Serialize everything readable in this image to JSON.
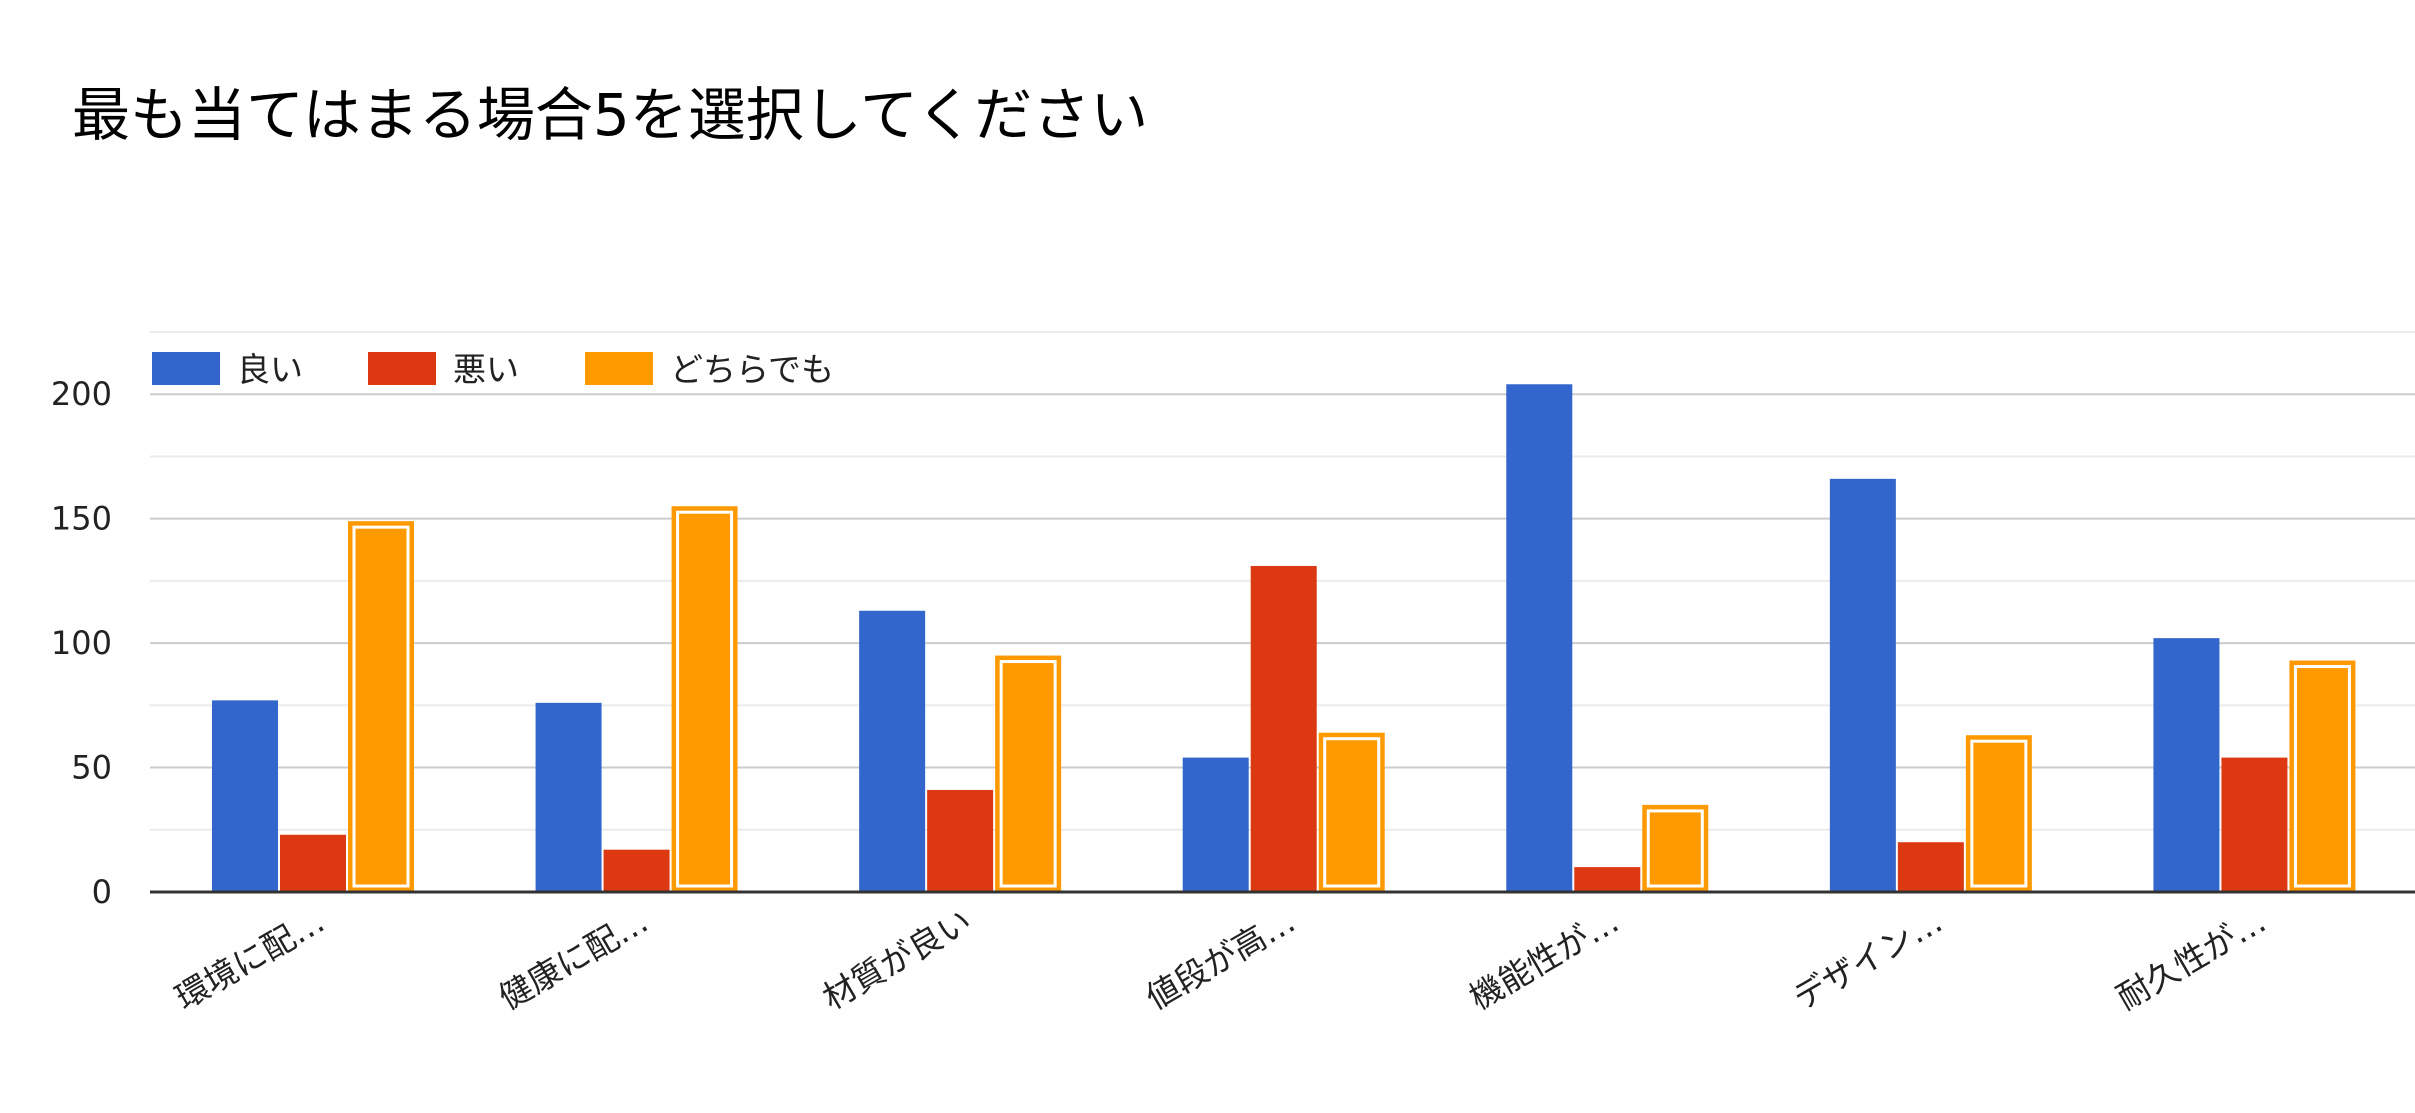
{
  "chart_data": {
    "type": "bar",
    "title": "最も当てはまる場合5を選択してください",
    "categories": [
      "環境に配…",
      "健康に配…",
      "材質が良い",
      "値段が高…",
      "機能性が…",
      "デザイン…",
      "耐久性が…"
    ],
    "series": [
      {
        "name": "良い",
        "color": "#3366cc",
        "values": [
          77,
          76,
          113,
          54,
          204,
          166,
          102
        ]
      },
      {
        "name": "悪い",
        "color": "#dc3912",
        "values": [
          23,
          17,
          41,
          131,
          10,
          20,
          54
        ]
      },
      {
        "name": "どちらでも",
        "color": "#ff9900",
        "values": [
          149,
          155,
          95,
          64,
          35,
          63,
          93
        ]
      }
    ],
    "ylim": [
      0,
      225
    ],
    "yticks": [
      0,
      50,
      100,
      150,
      200
    ],
    "grid": true,
    "legend_position": "top-left",
    "xlabel": "",
    "ylabel": ""
  }
}
